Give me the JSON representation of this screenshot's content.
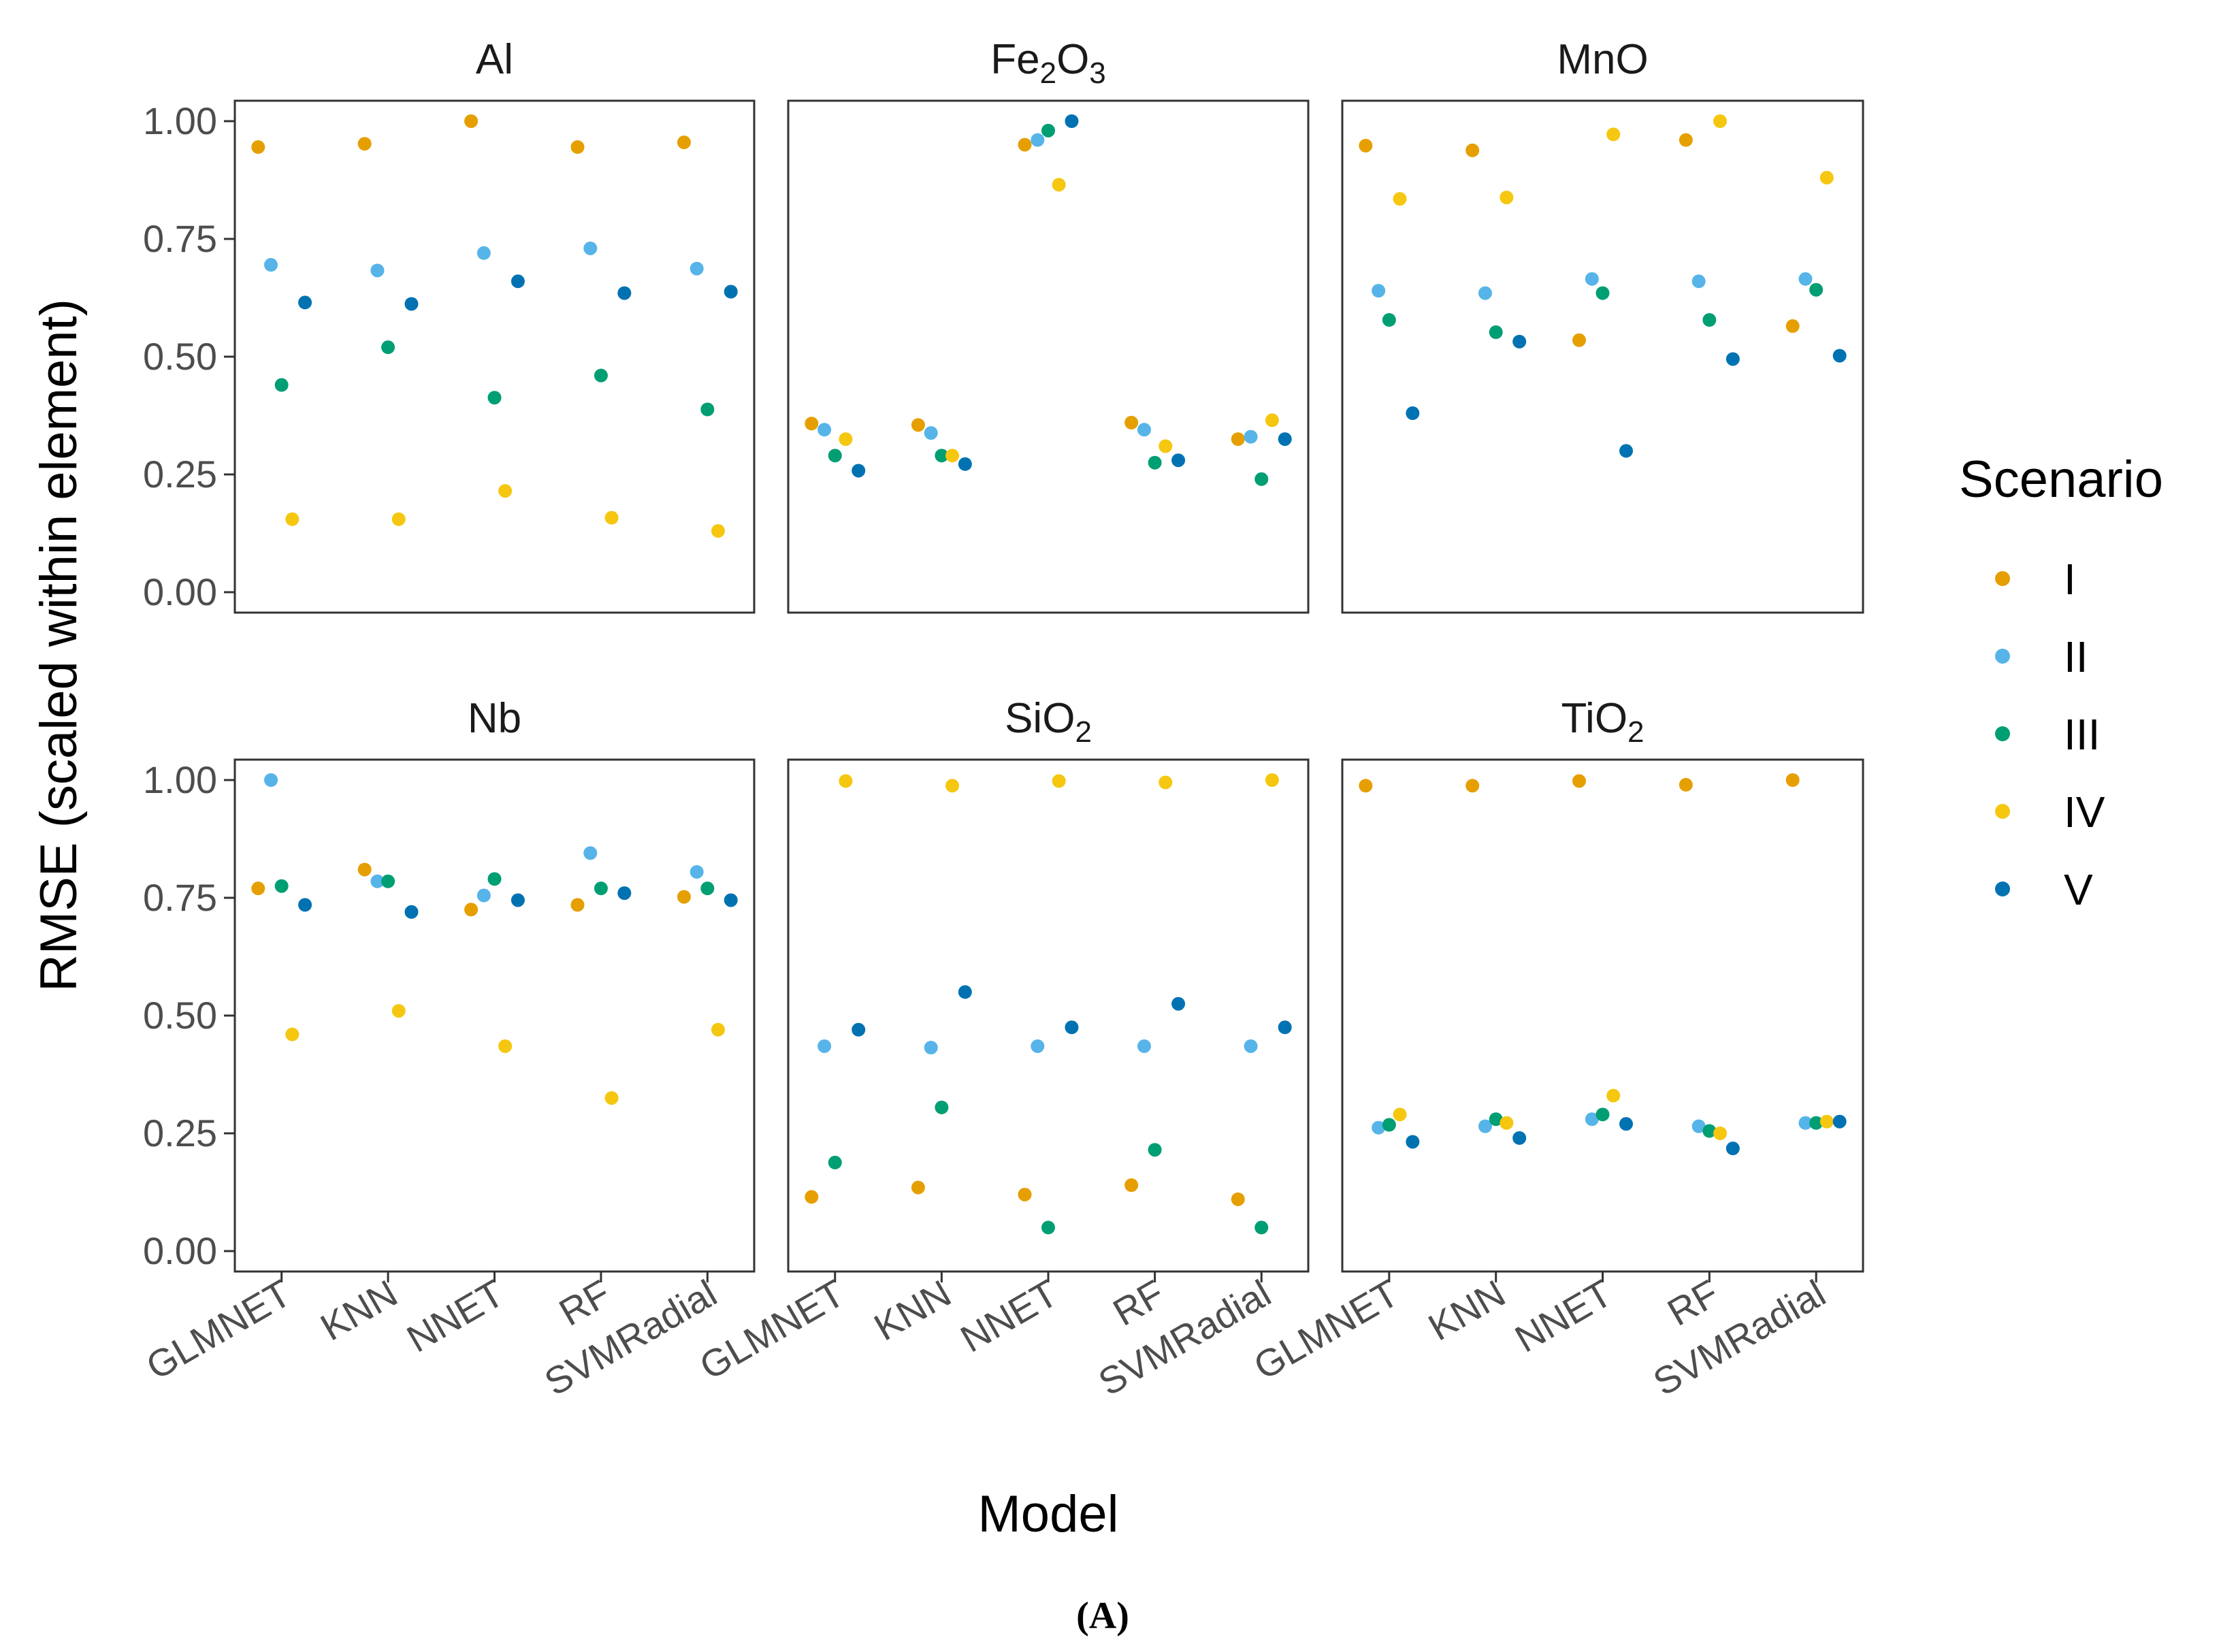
{
  "chart_data": {
    "type": "scatter",
    "ylabel": "RMSE (scaled within element)",
    "xlabel": "Model",
    "caption": "(A)",
    "ylim": [
      0,
      1
    ],
    "yticks": [
      "0.00",
      "0.25",
      "0.50",
      "0.75",
      "1.00"
    ],
    "models": [
      "GLMNET",
      "KNN",
      "NNET",
      "RF",
      "SVMRadial"
    ],
    "legend": {
      "title": "Scenario",
      "placement": "right",
      "entries": [
        {
          "label": "I",
          "color": "#E69F00"
        },
        {
          "label": "II",
          "color": "#56B4E9"
        },
        {
          "label": "III",
          "color": "#009E73"
        },
        {
          "label": "IV",
          "color": "#F5C710"
        },
        {
          "label": "V",
          "color": "#0072B2"
        }
      ]
    },
    "panels": [
      {
        "title": "Al",
        "title_main": "Al",
        "title_sub1": "",
        "title_mid": "",
        "title_sub2": "",
        "series": [
          {
            "name": "I",
            "values": [
              0.945,
              0.952,
              1.0,
              0.945,
              0.955
            ]
          },
          {
            "name": "II",
            "values": [
              0.695,
              0.683,
              0.72,
              0.73,
              0.687
            ]
          },
          {
            "name": "III",
            "values": [
              0.44,
              0.52,
              0.413,
              0.46,
              0.388
            ]
          },
          {
            "name": "IV",
            "values": [
              0.155,
              0.155,
              0.215,
              0.158,
              0.13
            ]
          },
          {
            "name": "V",
            "values": [
              0.615,
              0.612,
              0.66,
              0.635,
              0.638
            ]
          }
        ]
      },
      {
        "title": "Fe2O3",
        "title_main": "Fe",
        "title_sub1": "2",
        "title_mid": "O",
        "title_sub2": "3",
        "series": [
          {
            "name": "I",
            "values": [
              0.358,
              0.355,
              0.95,
              0.36,
              0.325
            ]
          },
          {
            "name": "II",
            "values": [
              0.345,
              0.338,
              0.96,
              0.345,
              0.33
            ]
          },
          {
            "name": "III",
            "values": [
              0.29,
              0.29,
              0.98,
              0.275,
              0.24
            ]
          },
          {
            "name": "IV",
            "values": [
              0.325,
              0.29,
              0.865,
              0.31,
              0.365
            ]
          },
          {
            "name": "V",
            "values": [
              0.258,
              0.272,
              1.0,
              0.28,
              0.325
            ]
          }
        ]
      },
      {
        "title": "MnO",
        "title_main": "MnO",
        "title_sub1": "",
        "title_mid": "",
        "title_sub2": "",
        "series": [
          {
            "name": "I",
            "values": [
              0.948,
              0.938,
              0.535,
              0.96,
              0.565
            ]
          },
          {
            "name": "II",
            "values": [
              0.64,
              0.635,
              0.665,
              0.66,
              0.665
            ]
          },
          {
            "name": "III",
            "values": [
              0.578,
              0.552,
              0.635,
              0.578,
              0.642
            ]
          },
          {
            "name": "IV",
            "values": [
              0.835,
              0.838,
              0.972,
              1.0,
              0.88
            ]
          },
          {
            "name": "V",
            "values": [
              0.38,
              0.532,
              0.3,
              0.495,
              0.502
            ]
          }
        ]
      },
      {
        "title": "Nb",
        "title_main": "Nb",
        "title_sub1": "",
        "title_mid": "",
        "title_sub2": "",
        "series": [
          {
            "name": "I",
            "values": [
              0.77,
              0.81,
              0.725,
              0.735,
              0.752
            ]
          },
          {
            "name": "II",
            "values": [
              1.0,
              0.785,
              0.755,
              0.845,
              0.805
            ]
          },
          {
            "name": "III",
            "values": [
              0.775,
              0.785,
              0.79,
              0.77,
              0.77
            ]
          },
          {
            "name": "IV",
            "values": [
              0.46,
              0.51,
              0.435,
              0.325,
              0.47
            ]
          },
          {
            "name": "V",
            "values": [
              0.735,
              0.72,
              0.745,
              0.76,
              0.745
            ]
          }
        ]
      },
      {
        "title": "SiO2",
        "title_main": "SiO",
        "title_sub1": "2",
        "title_mid": "",
        "title_sub2": "",
        "series": [
          {
            "name": "I",
            "values": [
              0.115,
              0.135,
              0.12,
              0.14,
              0.11
            ]
          },
          {
            "name": "II",
            "values": [
              0.435,
              0.432,
              0.435,
              0.435,
              0.435
            ]
          },
          {
            "name": "III",
            "values": [
              0.188,
              0.305,
              0.05,
              0.215,
              0.05
            ]
          },
          {
            "name": "IV",
            "values": [
              0.998,
              0.988,
              0.998,
              0.995,
              1.0
            ]
          },
          {
            "name": "V",
            "values": [
              0.47,
              0.55,
              0.475,
              0.525,
              0.475
            ]
          }
        ]
      },
      {
        "title": "TiO2",
        "title_main": "TiO",
        "title_sub1": "2",
        "title_mid": "",
        "title_sub2": "",
        "series": [
          {
            "name": "I",
            "values": [
              0.988,
              0.988,
              0.998,
              0.99,
              1.0
            ]
          },
          {
            "name": "II",
            "values": [
              0.262,
              0.265,
              0.28,
              0.265,
              0.272
            ]
          },
          {
            "name": "III",
            "values": [
              0.268,
              0.28,
              0.29,
              0.255,
              0.272
            ]
          },
          {
            "name": "IV",
            "values": [
              0.29,
              0.272,
              0.33,
              0.25,
              0.275
            ]
          },
          {
            "name": "V",
            "values": [
              0.232,
              0.24,
              0.27,
              0.218,
              0.275
            ]
          }
        ]
      }
    ]
  }
}
